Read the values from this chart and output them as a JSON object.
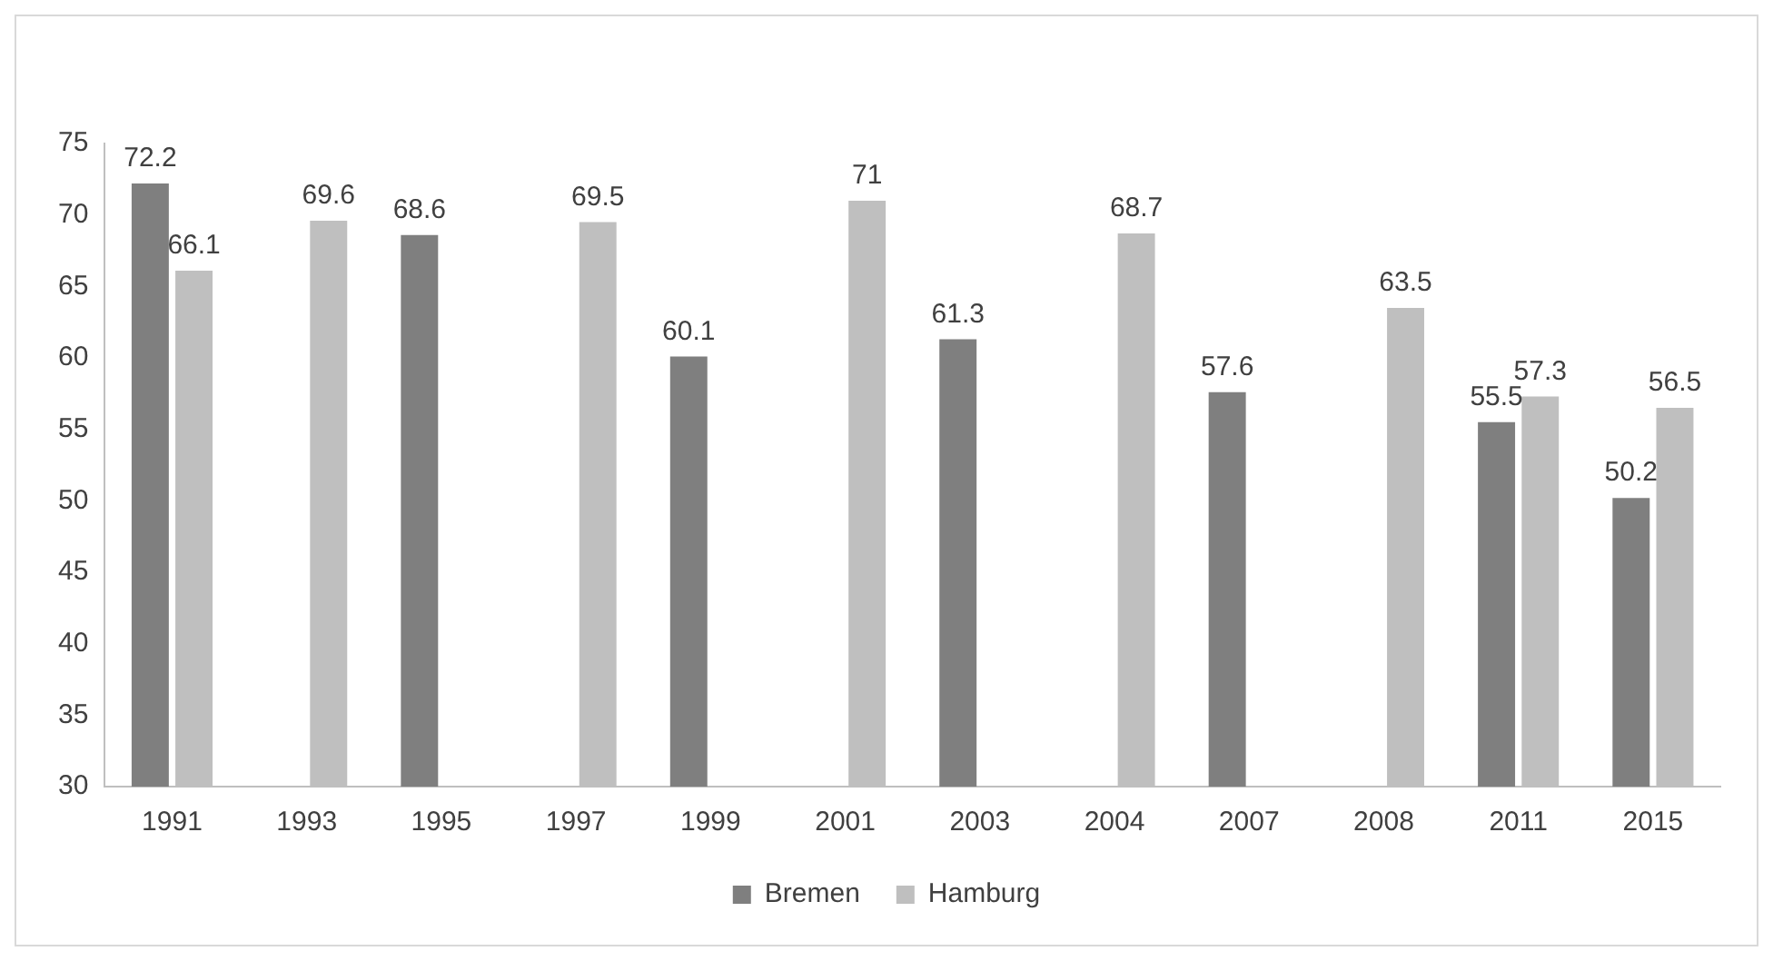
{
  "chart_data": {
    "type": "bar",
    "categories": [
      "1991",
      "1993",
      "1995",
      "1997",
      "1999",
      "2001",
      "2003",
      "2004",
      "2007",
      "2008",
      "2011",
      "2015"
    ],
    "series": [
      {
        "name": "Bremen",
        "color": "#7f7f7f",
        "values": [
          72.2,
          null,
          68.6,
          null,
          60.1,
          null,
          61.3,
          null,
          57.6,
          null,
          55.5,
          50.2
        ]
      },
      {
        "name": "Hamburg",
        "color": "#bfbfbf",
        "values": [
          66.1,
          69.6,
          null,
          69.5,
          null,
          71,
          null,
          68.7,
          null,
          63.5,
          57.3,
          56.5
        ]
      }
    ],
    "ylim": [
      30,
      75
    ],
    "yticks": [
      30,
      35,
      40,
      45,
      50,
      55,
      60,
      65,
      70,
      75
    ],
    "grid": false,
    "legend": "bottom",
    "data_labels": true
  }
}
